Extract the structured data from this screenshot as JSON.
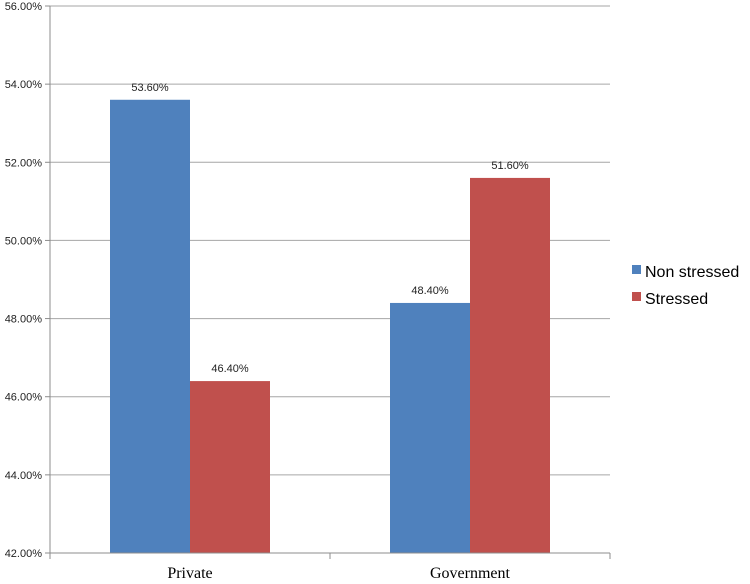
{
  "chart_data": {
    "type": "bar",
    "categories": [
      "Private",
      "Government"
    ],
    "series": [
      {
        "name": "Non stressed",
        "values": [
          53.6,
          48.4
        ],
        "color": "#4f81bd",
        "labels": [
          "53.60%",
          "48.40%"
        ]
      },
      {
        "name": "Stressed",
        "values": [
          46.4,
          51.6
        ],
        "color": "#c0504d",
        "labels": [
          "46.40%",
          "51.60%"
        ]
      }
    ],
    "ylim": [
      42,
      56
    ],
    "yticks": [
      {
        "value": 42,
        "label": "42.00%"
      },
      {
        "value": 44,
        "label": "44.00%"
      },
      {
        "value": 46,
        "label": "46.00%"
      },
      {
        "value": 48,
        "label": "48.00%"
      },
      {
        "value": 50,
        "label": "50.00%"
      },
      {
        "value": 52,
        "label": "52.00%"
      },
      {
        "value": 54,
        "label": "54.00%"
      },
      {
        "value": 56,
        "label": "56.00%"
      }
    ],
    "grid": true,
    "legend": "right",
    "gridline_color": "#a6a6a6",
    "axis_color": "#8c8c8c"
  }
}
